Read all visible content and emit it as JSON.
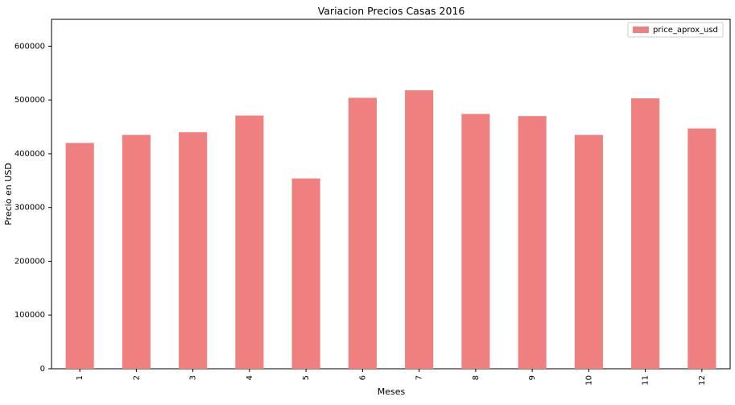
{
  "chart_data": {
    "type": "bar",
    "title": "Variacion Precios Casas 2016",
    "xlabel": "Meses",
    "ylabel": "Precio en USD",
    "categories": [
      "1",
      "2",
      "3",
      "4",
      "5",
      "6",
      "7",
      "8",
      "9",
      "10",
      "11",
      "12"
    ],
    "series": [
      {
        "name": "price_aprox_usd",
        "color": "#f08080",
        "values": [
          420000,
          435000,
          440000,
          471000,
          354000,
          504000,
          518000,
          474000,
          470000,
          435000,
          503000,
          447000
        ]
      }
    ],
    "ylim": [
      0,
      650000
    ],
    "yticks": [
      0,
      100000,
      200000,
      300000,
      400000,
      500000,
      600000
    ],
    "ytick_labels": [
      "0",
      "100000",
      "200000",
      "300000",
      "400000",
      "500000",
      "600000"
    ],
    "grid": false,
    "legend_position": "top-right",
    "xtick_rotation": "vertical"
  }
}
